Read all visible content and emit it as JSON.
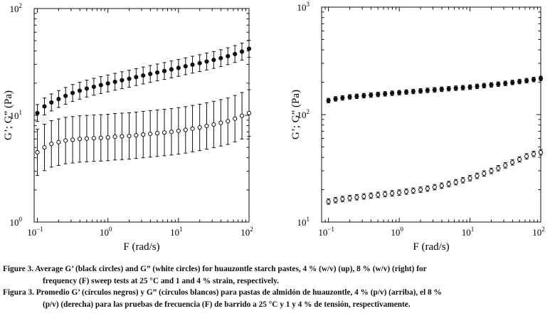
{
  "chart_data": [
    {
      "type": "scatter",
      "panel": "left",
      "xscale": "log",
      "yscale": "log",
      "xlim": [
        0.09,
        100
      ],
      "ylim": [
        1,
        100
      ],
      "xlabel": "F (rad/s)",
      "ylabel": "G’; G” (Pa)",
      "x_ticks": [
        {
          "value": 0.1,
          "base": "10",
          "exp": "−1"
        },
        {
          "value": 1,
          "base": "10",
          "exp": "0"
        },
        {
          "value": 10,
          "base": "10",
          "exp": "1"
        },
        {
          "value": 100,
          "base": "10",
          "exp": "2"
        }
      ],
      "y_ticks": [
        {
          "value": 1,
          "base": "10",
          "exp": "0"
        },
        {
          "value": 10,
          "base": "10",
          "exp": "1"
        },
        {
          "value": 100,
          "base": "10",
          "exp": "2"
        }
      ],
      "x": [
        0.1,
        0.126,
        0.158,
        0.2,
        0.251,
        0.316,
        0.398,
        0.501,
        0.631,
        0.794,
        1.0,
        1.26,
        1.58,
        2.0,
        2.51,
        3.16,
        3.98,
        5.01,
        6.31,
        7.94,
        10.0,
        12.6,
        15.8,
        20.0,
        25.1,
        31.6,
        39.8,
        50.1,
        63.1,
        79.4,
        100.0
      ],
      "series": [
        {
          "name": "G’",
          "marker": "filled-circle",
          "values": [
            10.5,
            12.1,
            13.2,
            14.2,
            15.2,
            16.2,
            17.0,
            17.8,
            18.5,
            19.2,
            19.9,
            20.6,
            21.3,
            22.0,
            22.8,
            23.6,
            24.4,
            25.2,
            26.0,
            26.9,
            27.8,
            28.8,
            29.8,
            30.8,
            31.9,
            33.0,
            34.3,
            35.8,
            37.5,
            39.5,
            42.0
          ],
          "err_factor": 1.2
        },
        {
          "name": "G”",
          "marker": "open-circle",
          "values": [
            4.5,
            5.0,
            5.4,
            5.6,
            5.8,
            5.9,
            6.0,
            6.05,
            6.1,
            6.15,
            6.2,
            6.3,
            6.35,
            6.4,
            6.5,
            6.6,
            6.7,
            6.8,
            6.9,
            7.0,
            7.15,
            7.3,
            7.5,
            7.7,
            7.95,
            8.2,
            8.5,
            8.8,
            9.3,
            9.9,
            10.5
          ],
          "err_factor": 1.65
        }
      ]
    },
    {
      "type": "scatter",
      "panel": "right",
      "xscale": "log",
      "yscale": "log",
      "xlim": [
        0.08,
        100
      ],
      "ylim": [
        10,
        1000
      ],
      "xlabel": "F (rad/s)",
      "ylabel": "G’; G” (Pa)",
      "x_ticks": [
        {
          "value": 0.1,
          "base": "10",
          "exp": "−1"
        },
        {
          "value": 1,
          "base": "10",
          "exp": "0"
        },
        {
          "value": 10,
          "base": "10",
          "exp": "1"
        },
        {
          "value": 100,
          "base": "10",
          "exp": "2"
        }
      ],
      "y_ticks": [
        {
          "value": 10,
          "base": "10",
          "exp": "1"
        },
        {
          "value": 100,
          "base": "10",
          "exp": "2"
        },
        {
          "value": 1000,
          "base": "10",
          "exp": "3"
        }
      ],
      "x": [
        0.1,
        0.126,
        0.158,
        0.2,
        0.251,
        0.316,
        0.398,
        0.501,
        0.631,
        0.794,
        1.0,
        1.26,
        1.58,
        2.0,
        2.51,
        3.16,
        3.98,
        5.01,
        6.31,
        7.94,
        10.0,
        12.6,
        15.8,
        20.0,
        25.1,
        31.6,
        39.8,
        50.1,
        63.1,
        79.4,
        100.0
      ],
      "series": [
        {
          "name": "G’",
          "marker": "filled-circle",
          "values": [
            135,
            140,
            143,
            146,
            148,
            150,
            152,
            154,
            156,
            158,
            160,
            162,
            164,
            166,
            168,
            170,
            172,
            174,
            176,
            178,
            180,
            183,
            186,
            189,
            192,
            195,
            199,
            203,
            207,
            212,
            217
          ],
          "err_factor": 1.05
        },
        {
          "name": "G”",
          "marker": "open-circle",
          "values": [
            15.5,
            16.0,
            16.4,
            16.7,
            17.0,
            17.3,
            17.6,
            17.9,
            18.2,
            18.5,
            18.8,
            19.2,
            19.6,
            20.0,
            20.5,
            21.1,
            21.8,
            22.6,
            23.5,
            24.5,
            25.6,
            26.9,
            28.3,
            29.9,
            31.7,
            33.7,
            35.9,
            38.3,
            40.9,
            43.0,
            44.5
          ],
          "err_factor": 1.06
        }
      ]
    }
  ],
  "caption": {
    "en_label": "Figure 3.",
    "en_line1": "Average G’ (black circles) and G” (white circles) for huauzontle starch pastes, 4 % (w/v) (up), 8 % (w/v) (right) for",
    "en_line2": "frequency (F) sweep tests at 25 °C and 1 and 4 % strain, respectively.",
    "es_label": "Figura 3.",
    "es_line1": "Promedio G’ (círculos negros) y G” (círculos blancos) para pastas de almidón de huauzontle, 4 % (p/v) (arriba), el 8 %",
    "es_line2": "(p/v) (derecha) para las pruebas de frecuencia (F)  de barrido a 25 °C y 1 y 4 % de tensión, respectivamente."
  }
}
